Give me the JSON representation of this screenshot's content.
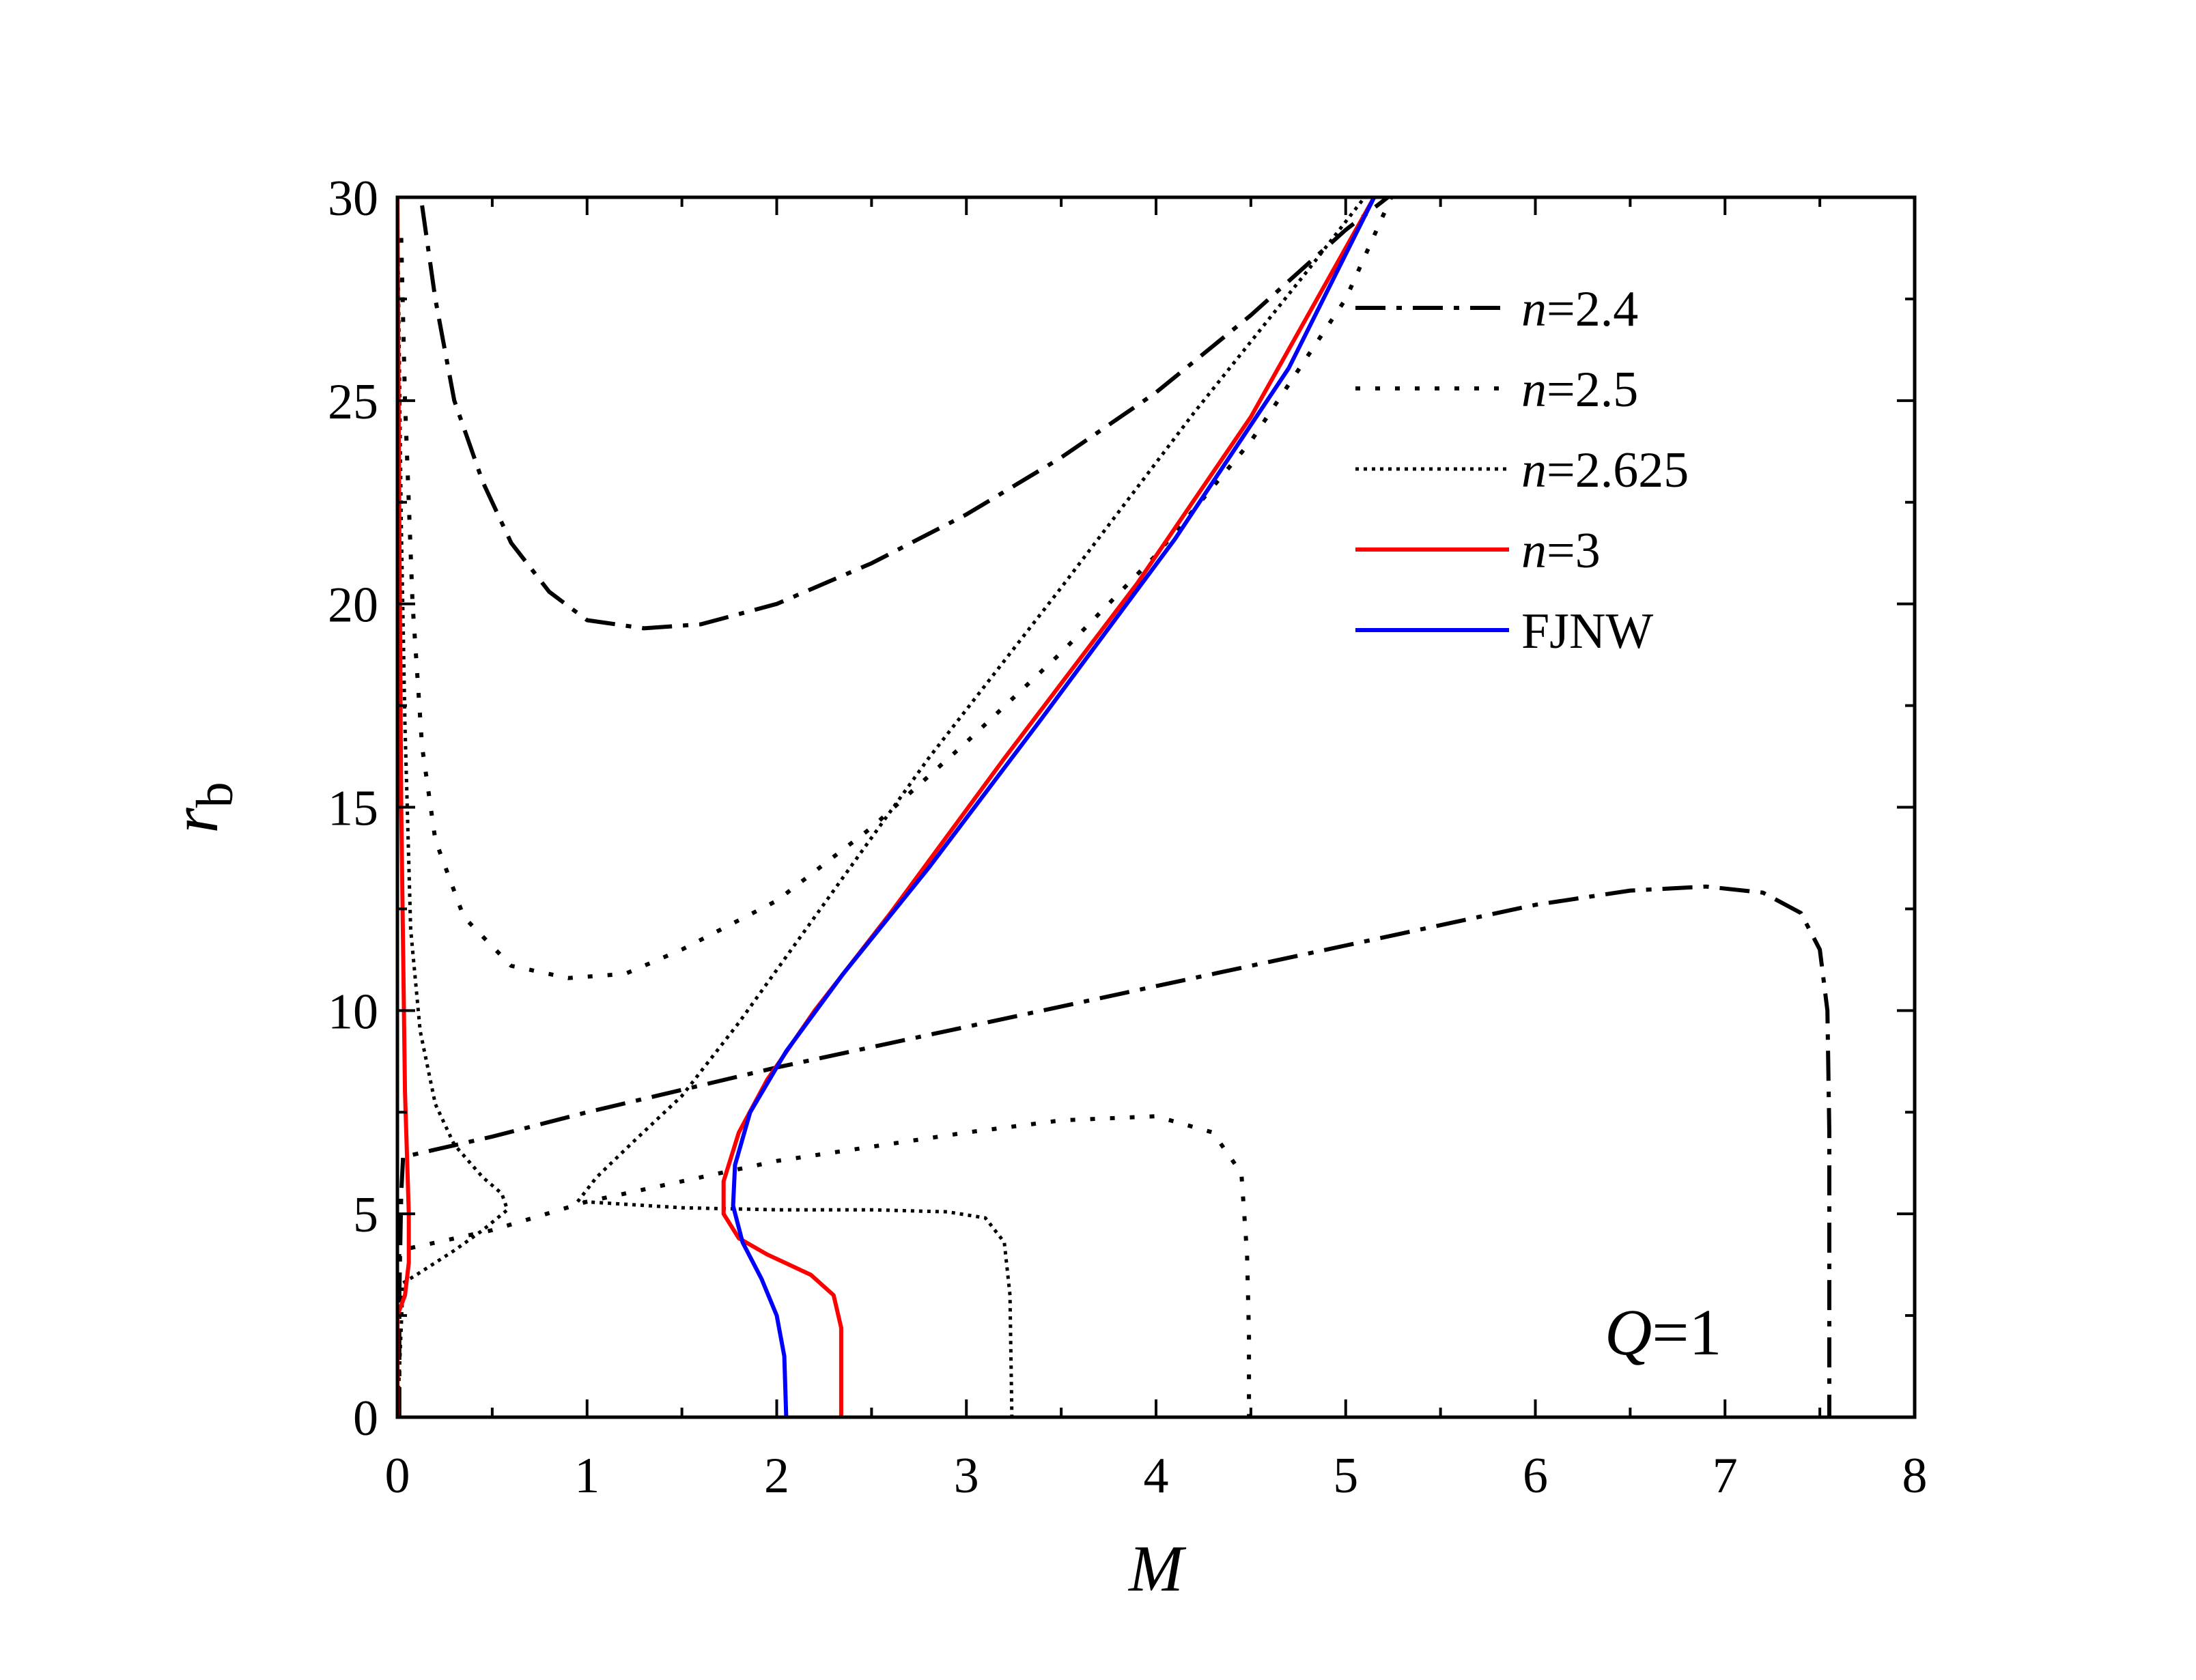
{
  "chart_data": {
    "type": "line",
    "xlabel": "M",
    "ylabel_main": "r",
    "ylabel_sub": "b",
    "xlim": [
      0,
      8
    ],
    "ylim": [
      0,
      30
    ],
    "x_ticks": [
      "0",
      "1",
      "2",
      "3",
      "4",
      "5",
      "6",
      "7",
      "8"
    ],
    "y_ticks": [
      "0",
      "5",
      "10",
      "15",
      "20",
      "25",
      "30"
    ],
    "annotation": {
      "var": "Q",
      "eq": "=1"
    },
    "grid": false,
    "legend_position": "top-right",
    "series": [
      {
        "name": "n=2.4",
        "legend_var": "n",
        "legend_eq": "=2.4",
        "color": "#000000",
        "style": "dashdot",
        "segments": [
          [
            [
              0.13,
              29.8
            ],
            [
              0.2,
              27.5
            ],
            [
              0.3,
              25.0
            ],
            [
              0.45,
              23.0
            ],
            [
              0.6,
              21.5
            ],
            [
              0.8,
              20.3
            ],
            [
              1.0,
              19.6
            ],
            [
              1.3,
              19.4
            ],
            [
              1.6,
              19.5
            ],
            [
              2.0,
              20.0
            ],
            [
              2.5,
              21.0
            ],
            [
              3.0,
              22.2
            ],
            [
              3.5,
              23.6
            ],
            [
              4.0,
              25.2
            ],
            [
              4.5,
              27.1
            ],
            [
              5.0,
              29.2
            ],
            [
              5.25,
              30.1
            ]
          ],
          [
            [
              0.01,
              0.0
            ],
            [
              0.01,
              3.0
            ],
            [
              0.02,
              5.5
            ],
            [
              0.03,
              6.4
            ],
            [
              0.5,
              6.9
            ],
            [
              1.0,
              7.5
            ],
            [
              2.0,
              8.6
            ],
            [
              3.0,
              9.6
            ],
            [
              4.0,
              10.6
            ],
            [
              5.0,
              11.6
            ],
            [
              6.0,
              12.6
            ],
            [
              6.5,
              12.95
            ],
            [
              6.9,
              13.05
            ],
            [
              7.2,
              12.9
            ],
            [
              7.4,
              12.4
            ],
            [
              7.5,
              11.5
            ],
            [
              7.54,
              10.0
            ],
            [
              7.55,
              7.0
            ],
            [
              7.55,
              3.0
            ],
            [
              7.55,
              0.0
            ]
          ]
        ]
      },
      {
        "name": "n=2.5",
        "legend_var": "n",
        "legend_eq": "=2.5",
        "color": "#000000",
        "style": "dotted-sparse",
        "segments": [
          [
            [
              0.02,
              29.0
            ],
            [
              0.04,
              25.0
            ],
            [
              0.08,
              20.0
            ],
            [
              0.13,
              16.5
            ],
            [
              0.2,
              14.2
            ],
            [
              0.35,
              12.3
            ],
            [
              0.6,
              11.1
            ],
            [
              0.9,
              10.8
            ],
            [
              1.2,
              10.9
            ],
            [
              1.5,
              11.5
            ],
            [
              2.0,
              12.7
            ],
            [
              2.5,
              14.5
            ],
            [
              3.0,
              16.6
            ],
            [
              3.5,
              18.8
            ],
            [
              4.0,
              21.2
            ],
            [
              4.5,
              24.0
            ],
            [
              5.0,
              27.5
            ],
            [
              5.25,
              30.1
            ]
          ],
          [
            [
              0.0,
              0.0
            ],
            [
              0.005,
              3.0
            ],
            [
              0.01,
              4.1
            ],
            [
              0.5,
              4.6
            ],
            [
              1.0,
              5.3
            ],
            [
              2.0,
              6.3
            ],
            [
              3.0,
              7.0
            ],
            [
              3.5,
              7.3
            ],
            [
              4.0,
              7.4
            ],
            [
              4.3,
              7.0
            ],
            [
              4.45,
              6.0
            ],
            [
              4.48,
              4.0
            ],
            [
              4.49,
              2.0
            ],
            [
              4.49,
              0.0
            ]
          ]
        ]
      },
      {
        "name": "n=2.625",
        "legend_var": "n",
        "legend_eq": "=2.625",
        "color": "#000000",
        "style": "dotted-dense",
        "segments": [
          [
            [
              0.0,
              30.0
            ],
            [
              0.01,
              26.0
            ],
            [
              0.02,
              22.0
            ],
            [
              0.04,
              17.0
            ],
            [
              0.07,
              12.0
            ],
            [
              0.12,
              9.5
            ],
            [
              0.2,
              7.7
            ],
            [
              0.3,
              6.7
            ],
            [
              0.45,
              5.9
            ],
            [
              0.55,
              5.5
            ],
            [
              0.58,
              5.1
            ],
            [
              0.45,
              4.6
            ],
            [
              0.3,
              4.1
            ],
            [
              0.1,
              3.5
            ],
            [
              0.03,
              3.3
            ],
            [
              0.0,
              0.0
            ]
          ],
          [
            [
              0.95,
              5.3
            ],
            [
              1.05,
              5.9
            ],
            [
              1.25,
              6.8
            ],
            [
              1.5,
              7.9
            ],
            [
              1.8,
              9.7
            ],
            [
              2.2,
              12.3
            ],
            [
              2.8,
              16.2
            ],
            [
              3.5,
              20.4
            ],
            [
              4.2,
              24.7
            ],
            [
              4.8,
              28.2
            ],
            [
              5.1,
              30.0
            ]
          ],
          [
            [
              0.98,
              5.3
            ],
            [
              1.5,
              5.15
            ],
            [
              2.0,
              5.1
            ],
            [
              2.5,
              5.1
            ],
            [
              2.9,
              5.05
            ],
            [
              3.1,
              4.9
            ],
            [
              3.2,
              4.3
            ],
            [
              3.23,
              3.0
            ],
            [
              3.24,
              0.0
            ]
          ]
        ]
      },
      {
        "name": "n=3",
        "legend_var": "n",
        "legend_eq": "=3",
        "color": "#ff0000",
        "style": "solid",
        "segments": [
          [
            [
              0.0,
              30.0
            ],
            [
              0.01,
              22.0
            ],
            [
              0.02,
              15.0
            ],
            [
              0.04,
              8.0
            ],
            [
              0.06,
              5.0
            ],
            [
              0.06,
              3.8
            ],
            [
              0.04,
              3.0
            ],
            [
              0.0,
              2.5
            ],
            [
              0.0,
              0.0
            ]
          ],
          [
            [
              2.34,
              0.0
            ],
            [
              2.34,
              2.2
            ],
            [
              2.3,
              3.0
            ],
            [
              2.18,
              3.5
            ],
            [
              1.95,
              4.0
            ],
            [
              1.8,
              4.4
            ],
            [
              1.72,
              5.0
            ],
            [
              1.72,
              5.8
            ],
            [
              1.8,
              7.0
            ],
            [
              1.95,
              8.3
            ],
            [
              2.2,
              10.0
            ],
            [
              2.6,
              12.4
            ],
            [
              3.2,
              16.2
            ],
            [
              3.9,
              20.5
            ],
            [
              4.5,
              24.6
            ],
            [
              5.15,
              30.0
            ]
          ]
        ]
      },
      {
        "name": "FJNW",
        "legend_var": "",
        "legend_eq": "FJNW",
        "color": "#0000ff",
        "style": "solid",
        "segments": [
          [
            [
              2.05,
              0.0
            ],
            [
              2.04,
              1.5
            ],
            [
              2.0,
              2.5
            ],
            [
              1.92,
              3.4
            ],
            [
              1.82,
              4.3
            ],
            [
              1.77,
              5.2
            ],
            [
              1.78,
              6.2
            ],
            [
              1.86,
              7.5
            ],
            [
              2.05,
              9.0
            ],
            [
              2.35,
              10.9
            ],
            [
              2.8,
              13.5
            ],
            [
              3.4,
              17.2
            ],
            [
              4.1,
              21.6
            ],
            [
              4.7,
              25.8
            ],
            [
              5.15,
              30.0
            ]
          ]
        ]
      }
    ]
  }
}
